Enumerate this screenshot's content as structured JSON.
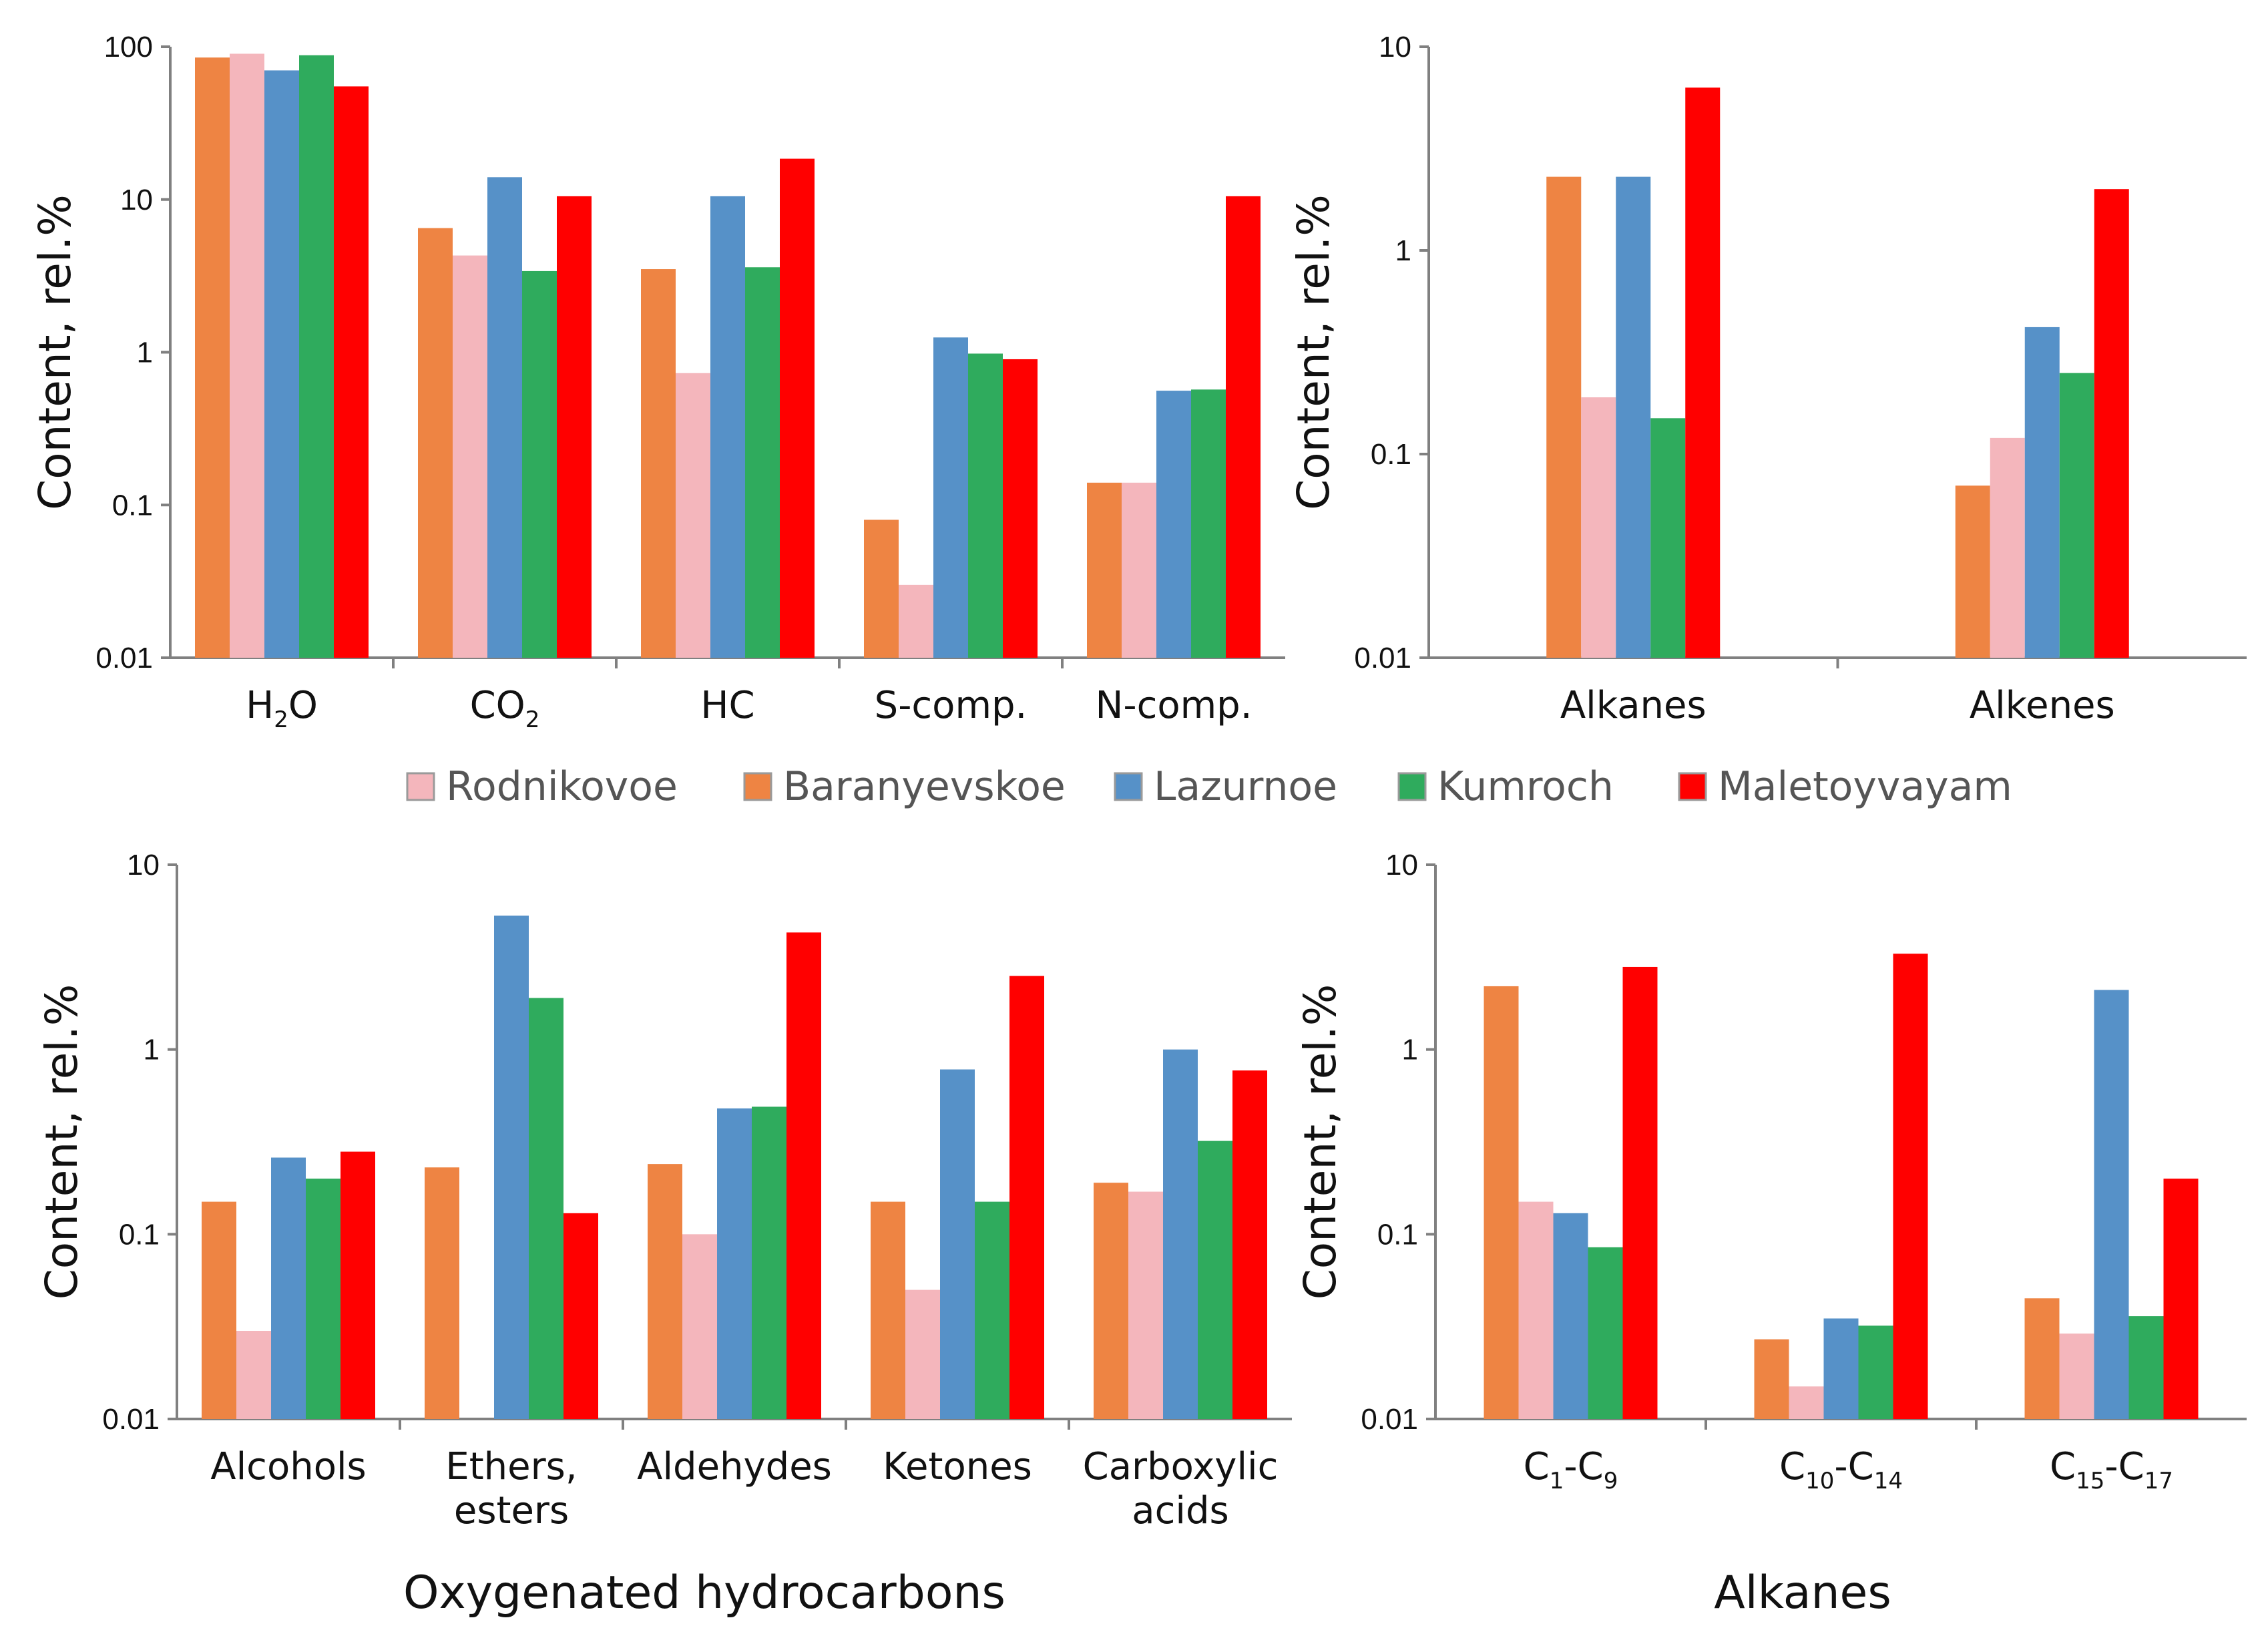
{
  "colors": {
    "Rodnikovoe": "#f4b6bc",
    "Baranyevskoe": "#ee8443",
    "Lazurnoe": "#5691c8",
    "Kumroch": "#2fab5d",
    "Maletoyvayam": "#ff0000"
  },
  "legend": [
    "Rodnikovoe",
    "Baranyevskoe",
    "Lazurnoe",
    "Kumroch",
    "Maletoyvayam"
  ],
  "captions": {
    "oxygenated": "Oxygenated hydrocarbons",
    "alkanes": "Alkanes"
  },
  "chart_data": [
    {
      "id": "general",
      "type": "bar",
      "scale": "log",
      "ylabel": "Content, rel.%",
      "ylim": [
        0.01,
        100
      ],
      "yticks": [
        "0.01",
        "0.1",
        "1",
        "10",
        "100"
      ],
      "categories": [
        [
          "H",
          "2",
          "O"
        ],
        [
          "CO",
          "2",
          ""
        ],
        [
          "HC"
        ],
        [
          "S-comp."
        ],
        [
          "N-comp."
        ]
      ],
      "series": [
        {
          "name": "Baranyevskoe",
          "values": [
            85,
            6.5,
            3.5,
            0.08,
            0.14
          ]
        },
        {
          "name": "Rodnikovoe",
          "values": [
            90,
            4.3,
            0.73,
            0.03,
            0.14
          ]
        },
        {
          "name": "Lazurnoe",
          "values": [
            70,
            14,
            10.5,
            1.25,
            0.56
          ]
        },
        {
          "name": "Kumroch",
          "values": [
            88,
            3.4,
            3.6,
            0.98,
            0.57
          ]
        },
        {
          "name": "Maletoyvayam",
          "values": [
            55,
            10.5,
            18.5,
            0.9,
            10.5
          ]
        }
      ]
    },
    {
      "id": "hydrocarbons",
      "type": "bar",
      "scale": "log",
      "ylabel": "Content, rel.%",
      "ylim": [
        0.01,
        10
      ],
      "yticks": [
        "0.01",
        "0.1",
        "1",
        "10"
      ],
      "categories": [
        [
          "Alkanes"
        ],
        [
          "Alkenes"
        ]
      ],
      "series": [
        {
          "name": "Baranyevskoe",
          "values": [
            2.3,
            0.07
          ]
        },
        {
          "name": "Rodnikovoe",
          "values": [
            0.19,
            0.12
          ]
        },
        {
          "name": "Lazurnoe",
          "values": [
            2.3,
            0.42
          ]
        },
        {
          "name": "Kumroch",
          "values": [
            0.15,
            0.25
          ]
        },
        {
          "name": "Maletoyvayam",
          "values": [
            6.3,
            2.0
          ]
        }
      ]
    },
    {
      "id": "oxygenated",
      "type": "bar",
      "scale": "log",
      "ylabel": "Content, rel.%",
      "ylim": [
        0.01,
        10
      ],
      "yticks": [
        "0.01",
        "0.1",
        "1",
        "10"
      ],
      "categories": [
        [
          "Alcohols"
        ],
        [
          "Ethers,",
          "esters"
        ],
        [
          "Aldehydes"
        ],
        [
          "Ketones"
        ],
        [
          "Carboxylic",
          "acids"
        ]
      ],
      "series": [
        {
          "name": "Baranyevskoe",
          "values": [
            0.15,
            0.23,
            0.24,
            0.15,
            0.19
          ]
        },
        {
          "name": "Rodnikovoe",
          "values": [
            0.03,
            null,
            0.1,
            0.05,
            0.17
          ]
        },
        {
          "name": "Lazurnoe",
          "values": [
            0.26,
            5.3,
            0.48,
            0.78,
            1.0
          ]
        },
        {
          "name": "Kumroch",
          "values": [
            0.2,
            1.9,
            0.49,
            0.15,
            0.32
          ]
        },
        {
          "name": "Maletoyvayam",
          "values": [
            0.28,
            0.13,
            4.3,
            2.5,
            0.77
          ]
        }
      ]
    },
    {
      "id": "alkanes",
      "type": "bar",
      "scale": "log",
      "ylabel": "Content, rel.%",
      "ylim": [
        0.01,
        10
      ],
      "yticks": [
        "0.01",
        "0.1",
        "1",
        "10"
      ],
      "categories": [
        [
          "C",
          "1",
          "-C",
          "9"
        ],
        [
          "C",
          "10",
          "-C",
          "14"
        ],
        [
          "C",
          "15",
          "-C",
          "17"
        ]
      ],
      "series": [
        {
          "name": "Baranyevskoe",
          "values": [
            2.2,
            0.027,
            0.045
          ]
        },
        {
          "name": "Rodnikovoe",
          "values": [
            0.15,
            0.015,
            0.029
          ]
        },
        {
          "name": "Lazurnoe",
          "values": [
            0.13,
            0.035,
            2.1
          ]
        },
        {
          "name": "Kumroch",
          "values": [
            0.085,
            0.032,
            0.036
          ]
        },
        {
          "name": "Maletoyvayam",
          "values": [
            2.8,
            3.3,
            0.2
          ]
        }
      ]
    }
  ]
}
